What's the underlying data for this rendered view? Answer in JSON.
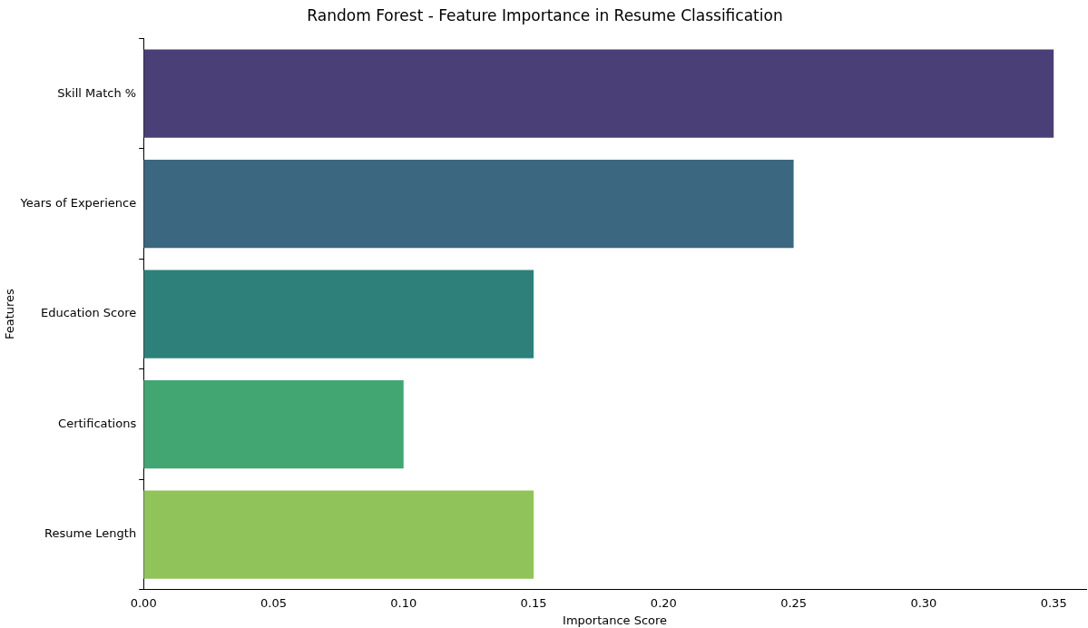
{
  "chart_data": {
    "type": "bar",
    "orientation": "horizontal",
    "title": "Random Forest - Feature Importance in Resume Classification",
    "xlabel": "Importance Score",
    "ylabel": "Features",
    "categories": [
      "Skill Match %",
      "Years of Experience",
      "Education Score",
      "Certifications",
      "Resume Length"
    ],
    "values": [
      0.35,
      0.25,
      0.15,
      0.1,
      0.15
    ],
    "colors": [
      "#4b3f77",
      "#3b6781",
      "#2d817a",
      "#42a673",
      "#90c45a"
    ],
    "xlim": [
      0,
      0.3625
    ],
    "xticks": [
      {
        "value": 0,
        "label": "0.00"
      },
      {
        "value": 0.05,
        "label": "0.05"
      },
      {
        "value": 0.1,
        "label": "0.10"
      },
      {
        "value": 0.15,
        "label": "0.15"
      },
      {
        "value": 0.2,
        "label": "0.20"
      },
      {
        "value": 0.25,
        "label": "0.25"
      },
      {
        "value": 0.3,
        "label": "0.30"
      },
      {
        "value": 0.35,
        "label": "0.35"
      }
    ],
    "grid": false,
    "legend": false
  }
}
